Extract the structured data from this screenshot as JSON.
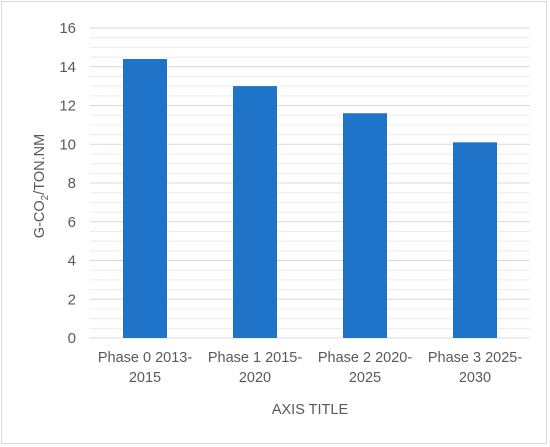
{
  "chart_data": {
    "type": "bar",
    "categories": [
      [
        "Phase 0  2013-",
        "2015"
      ],
      [
        "Phase 1  2015-",
        "2020"
      ],
      [
        "Phase 2  2020-",
        "2025"
      ],
      [
        "Phase 3  2025-",
        "2030"
      ]
    ],
    "values": [
      14.4,
      13.0,
      11.6,
      10.1
    ],
    "xlabel": "AXIS TITLE",
    "ylabel_parts": [
      "G-CO",
      "2",
      "/TON.NM"
    ],
    "ylim": [
      0,
      16
    ],
    "yticks": [
      0,
      2,
      4,
      6,
      8,
      10,
      12,
      14,
      16
    ],
    "grid": true,
    "minor_grid": true,
    "bar_color": "#1f73c9",
    "grid_color": "#d9d9d9",
    "minor_grid_color": "#ececec"
  }
}
